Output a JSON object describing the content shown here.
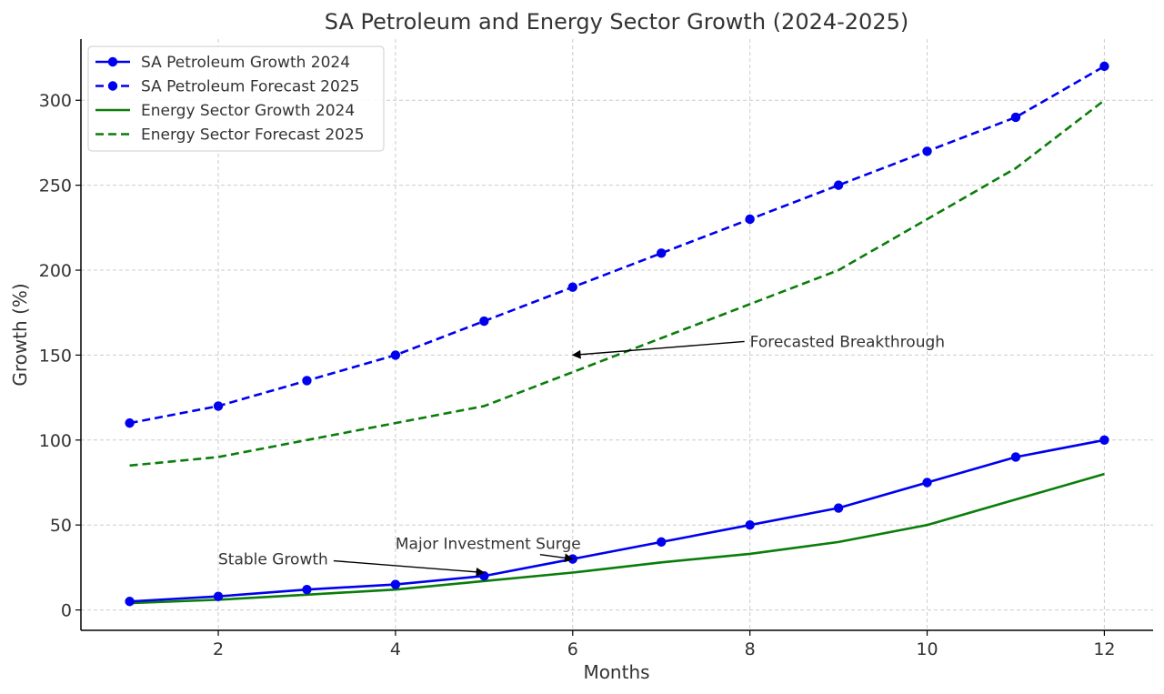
{
  "chart_data": {
    "type": "line",
    "title": "SA Petroleum and Energy Sector Growth (2024-2025)",
    "xlabel": "Months",
    "ylabel": "Growth (%)",
    "xlim": [
      0.45,
      12.55
    ],
    "ylim": [
      -12,
      336
    ],
    "x_ticks": [
      2,
      4,
      6,
      8,
      10,
      12
    ],
    "y_ticks": [
      0,
      50,
      100,
      150,
      200,
      250,
      300
    ],
    "grid": true,
    "legend_position": "top-left",
    "x": [
      1,
      2,
      3,
      4,
      5,
      6,
      7,
      8,
      9,
      10,
      11,
      12
    ],
    "series": [
      {
        "name": "SA Petroleum Growth 2024",
        "color": "#0000ee",
        "dashed": false,
        "markers": true,
        "values": [
          5,
          8,
          12,
          15,
          20,
          30,
          40,
          50,
          60,
          75,
          90,
          100
        ]
      },
      {
        "name": "SA Petroleum Forecast 2025",
        "color": "#0000ee",
        "dashed": true,
        "markers": true,
        "values": [
          110,
          120,
          135,
          150,
          170,
          190,
          210,
          230,
          250,
          270,
          290,
          320
        ]
      },
      {
        "name": "Energy Sector Growth 2024",
        "color": "#0a7d0a",
        "dashed": false,
        "markers": false,
        "values": [
          4,
          6,
          9,
          12,
          17,
          22,
          28,
          33,
          40,
          50,
          65,
          80
        ]
      },
      {
        "name": "Energy Sector Forecast 2025",
        "color": "#0a7d0a",
        "dashed": true,
        "markers": false,
        "values": [
          85,
          90,
          100,
          110,
          120,
          140,
          160,
          180,
          200,
          230,
          260,
          300
        ]
      }
    ],
    "annotations": [
      {
        "text": "Stable Growth",
        "text_x": 2,
        "text_y": 30,
        "point_x": 5,
        "point_y": 22
      },
      {
        "text": "Major Investment Surge",
        "text_x": 4,
        "text_y": 39,
        "point_x": 6,
        "point_y": 30
      },
      {
        "text": "Forecasted Breakthrough",
        "text_x": 8,
        "text_y": 158,
        "point_x": 6,
        "point_y": 150
      }
    ]
  }
}
